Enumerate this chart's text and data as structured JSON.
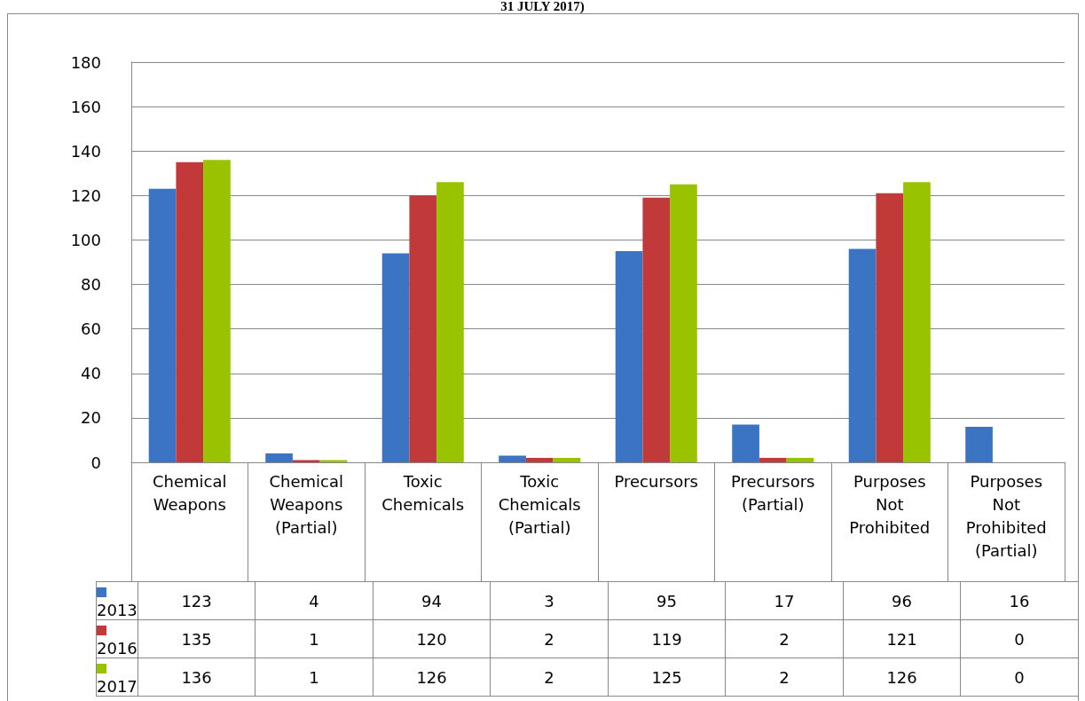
{
  "chart_data": {
    "type": "bar",
    "title": "31 JULY 2017)",
    "categories": [
      "Chemical\nWeapons",
      "Chemical\nWeapons\n(Partial)",
      "Toxic\nChemicals",
      "Toxic\nChemicals\n(Partial)",
      "Precursors",
      "Precursors\n(Partial)",
      "Purposes\nNot\nProhibited",
      "Purposes\nNot\nProhibited\n(Partial)"
    ],
    "series": [
      {
        "name": "2013",
        "color": "#3b74c2",
        "values": [
          123,
          4,
          94,
          3,
          95,
          17,
          96,
          16
        ]
      },
      {
        "name": "2016",
        "color": "#c2393a",
        "values": [
          135,
          1,
          120,
          2,
          119,
          2,
          121,
          0
        ]
      },
      {
        "name": "2017",
        "color": "#99c300",
        "values": [
          136,
          1,
          126,
          2,
          125,
          2,
          126,
          0
        ]
      }
    ],
    "ylim": [
      0,
      180
    ],
    "yticks": [
      0,
      20,
      40,
      60,
      80,
      100,
      120,
      140,
      160,
      180
    ],
    "grid": "y",
    "legend": "bottom",
    "data_labels": true
  }
}
